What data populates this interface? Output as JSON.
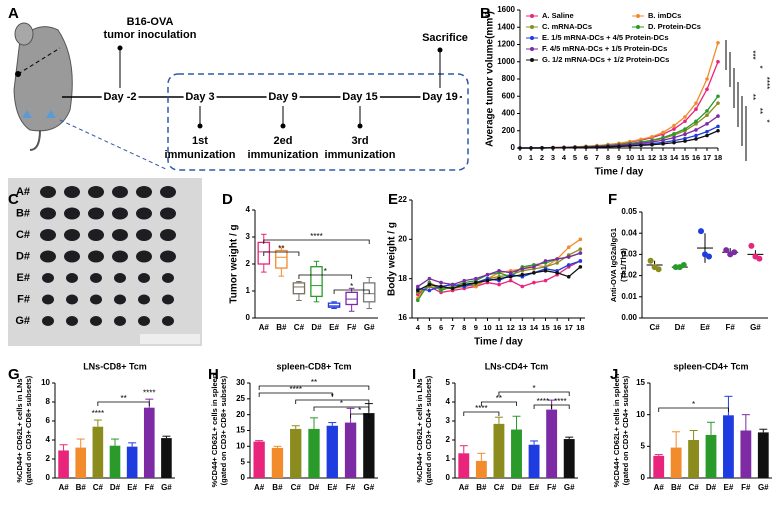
{
  "diagram": {
    "panel": "A",
    "inoculation": [
      "B16-OVA",
      "tumor inoculation"
    ],
    "days": [
      "Day -2",
      "Day 3",
      "Day 9",
      "Day 15",
      "Day 19"
    ],
    "sacrifice": "Sacrifice",
    "immunizations": [
      [
        "1st",
        "immunization"
      ],
      [
        "2ed",
        "immunization"
      ],
      [
        "3rd",
        "immunization"
      ]
    ]
  },
  "photo": {
    "panel": "C",
    "rows": [
      "A#",
      "B#",
      "C#",
      "D#",
      "E#",
      "F#",
      "G#"
    ]
  },
  "chart_data": [
    {
      "type": "line",
      "panel": "B",
      "xlabel": "Time / day",
      "ylabel": "Average tumor volume(mm³)",
      "x": [
        0,
        1,
        2,
        3,
        4,
        5,
        6,
        7,
        8,
        9,
        10,
        11,
        12,
        13,
        14,
        15,
        16,
        17,
        18
      ],
      "xlim": [
        0,
        18
      ],
      "xticks": [
        0,
        1,
        2,
        3,
        4,
        5,
        6,
        7,
        8,
        9,
        10,
        11,
        12,
        13,
        14,
        15,
        16,
        17,
        18
      ],
      "ylim": [
        0,
        1600
      ],
      "yticks": [
        0,
        200,
        400,
        600,
        800,
        1000,
        1200,
        1400,
        1600
      ],
      "series": [
        {
          "name": "A. Saline",
          "color": "#e8257b",
          "values": [
            0,
            0,
            2,
            5,
            8,
            12,
            18,
            25,
            35,
            50,
            70,
            90,
            120,
            160,
            220,
            310,
            450,
            680,
            1000
          ]
        },
        {
          "name": "B. imDCs",
          "color": "#f28b2c",
          "values": [
            0,
            0,
            2,
            5,
            9,
            14,
            20,
            28,
            40,
            55,
            75,
            100,
            130,
            180,
            260,
            360,
            520,
            800,
            1220
          ]
        },
        {
          "name": "C. mRNA-DCs",
          "color": "#8c8c1e",
          "values": [
            0,
            0,
            1,
            3,
            6,
            10,
            14,
            20,
            28,
            38,
            50,
            65,
            85,
            110,
            150,
            200,
            280,
            380,
            520
          ]
        },
        {
          "name": "D. Protein-DCs",
          "color": "#2a9a2a",
          "values": [
            0,
            0,
            1,
            3,
            6,
            10,
            15,
            21,
            30,
            40,
            53,
            70,
            90,
            120,
            165,
            220,
            310,
            430,
            600
          ]
        },
        {
          "name": "E. 1/5 mRNA-DCs + 4/5 Protein-DCs",
          "color": "#1e3ce0",
          "values": [
            0,
            0,
            1,
            2,
            4,
            6,
            9,
            13,
            18,
            24,
            31,
            40,
            50,
            65,
            85,
            110,
            145,
            190,
            250
          ]
        },
        {
          "name": "F. 4/5 mRNA-DCs + 1/5 Protein-DCs",
          "color": "#7d2aa5",
          "values": [
            0,
            0,
            1,
            3,
            5,
            8,
            12,
            17,
            24,
            32,
            42,
            55,
            70,
            90,
            120,
            160,
            210,
            280,
            370
          ]
        },
        {
          "name": "G. 1/2 mRNA-DCs + 1/2 Protein-DCs",
          "color": "#111111",
          "values": [
            0,
            0,
            1,
            2,
            3,
            5,
            7,
            10,
            14,
            18,
            24,
            30,
            38,
            48,
            62,
            80,
            105,
            145,
            200
          ]
        }
      ],
      "annotations": [
        "***",
        "*",
        "****",
        "**",
        "**",
        "*"
      ]
    },
    {
      "type": "box",
      "panel": "D",
      "ylabel": "Tumor weight / g",
      "categories": [
        "A#",
        "B#",
        "C#",
        "D#",
        "E#",
        "F#",
        "G#"
      ],
      "ylim": [
        0,
        4
      ],
      "yticks": [
        0,
        1,
        2,
        3,
        4
      ],
      "colors": [
        "#e8257b",
        "#f28b2c",
        "#7a6e62",
        "#2a9a2a",
        "#1e3ce0",
        "#7d2aa5",
        "#777777"
      ],
      "boxes": [
        {
          "min": 1.7,
          "q1": 2.0,
          "median": 2.45,
          "q3": 2.8,
          "max": 3.1
        },
        {
          "min": 1.55,
          "q1": 1.85,
          "median": 2.25,
          "q3": 2.5,
          "max": 2.6
        },
        {
          "min": 0.65,
          "q1": 0.9,
          "median": 1.15,
          "q3": 1.3,
          "max": 1.35
        },
        {
          "min": 0.6,
          "q1": 0.8,
          "median": 1.2,
          "q3": 1.9,
          "max": 2.1
        },
        {
          "min": 0.35,
          "q1": 0.4,
          "median": 0.45,
          "q3": 0.55,
          "max": 0.6
        },
        {
          "min": 0.25,
          "q1": 0.5,
          "median": 0.7,
          "q3": 0.95,
          "max": 1.1
        },
        {
          "min": 0.35,
          "q1": 0.6,
          "median": 0.9,
          "q3": 1.3,
          "max": 1.5
        }
      ],
      "annotations": [
        "****",
        "**",
        "*",
        "*"
      ]
    },
    {
      "type": "line",
      "panel": "E",
      "xlabel": "Time / day",
      "ylabel": "Body weight / g",
      "x": [
        4,
        5,
        6,
        7,
        8,
        9,
        10,
        11,
        12,
        13,
        14,
        15,
        16,
        17,
        18
      ],
      "xlim": [
        3.5,
        18.4
      ],
      "xticks": [
        4,
        5,
        6,
        7,
        8,
        9,
        10,
        11,
        12,
        13,
        14,
        15,
        16,
        17,
        18
      ],
      "ylim": [
        16,
        22
      ],
      "yticks": [
        16,
        18,
        20,
        22
      ],
      "series": [
        {
          "color": "#e8257b",
          "values": [
            17.2,
            17.6,
            17.3,
            17.4,
            17.5,
            17.6,
            17.8,
            17.7,
            17.9,
            17.6,
            17.8,
            17.9,
            18.2,
            18.6,
            18.9
          ]
        },
        {
          "color": "#f28b2c",
          "values": [
            17.0,
            17.8,
            17.5,
            17.6,
            17.7,
            17.6,
            18.0,
            18.3,
            18.4,
            18.5,
            18.7,
            18.6,
            19.0,
            19.6,
            20.0
          ]
        },
        {
          "color": "#8c8c1e",
          "values": [
            17.3,
            17.6,
            17.5,
            17.5,
            17.6,
            17.7,
            18.0,
            18.1,
            18.2,
            18.4,
            18.5,
            18.6,
            18.8,
            19.2,
            19.5
          ]
        },
        {
          "color": "#2a9a2a",
          "values": [
            16.9,
            17.8,
            17.4,
            17.6,
            17.8,
            17.9,
            18.2,
            18.3,
            18.1,
            18.6,
            18.7,
            18.8,
            19.0,
            19.1,
            19.3
          ]
        },
        {
          "color": "#1e3ce0",
          "values": [
            17.5,
            17.4,
            17.6,
            17.7,
            17.6,
            17.8,
            18.0,
            17.9,
            18.2,
            18.1,
            18.3,
            18.5,
            18.4,
            18.7,
            18.9
          ]
        },
        {
          "color": "#7d2aa5",
          "values": [
            17.6,
            18.0,
            17.8,
            17.7,
            17.9,
            18.0,
            18.2,
            18.4,
            18.3,
            18.5,
            18.6,
            18.9,
            19.0,
            19.1,
            19.3
          ]
        },
        {
          "color": "#111111",
          "values": [
            17.4,
            17.7,
            17.6,
            17.5,
            17.7,
            17.8,
            17.9,
            18.0,
            18.1,
            18.2,
            18.3,
            18.4,
            18.3,
            18.1,
            18.6
          ]
        }
      ]
    },
    {
      "type": "dot",
      "panel": "F",
      "ylabel": [
        "Anti-OVA IgG2a/IgG1",
        "(Th1/Th2)"
      ],
      "categories": [
        "C#",
        "D#",
        "E#",
        "F#",
        "G#"
      ],
      "colors": [
        "#8c8c1e",
        "#2a9a2a",
        "#1e3ce0",
        "#7d2aa5",
        "#e8257b"
      ],
      "ylim": [
        0,
        0.05
      ],
      "yticks": [
        {
          "value": 0,
          "label": "0.00"
        },
        {
          "value": 0.01,
          "label": "0.01"
        },
        {
          "value": 0.02,
          "label": "0.02"
        },
        {
          "value": 0.03,
          "label": "0.03"
        },
        {
          "value": 0.04,
          "label": "0.04"
        },
        {
          "value": 0.05,
          "label": "0.05"
        }
      ],
      "means": [
        0.025,
        0.024,
        0.033,
        0.031,
        0.03
      ],
      "errors": [
        0.002,
        0.001,
        0.007,
        0.002,
        0.002
      ],
      "points": [
        [
          0.027,
          0.024,
          0.023
        ],
        [
          0.024,
          0.024,
          0.025
        ],
        [
          0.041,
          0.03,
          0.029
        ],
        [
          0.032,
          0.03,
          0.031
        ],
        [
          0.034,
          0.029,
          0.028
        ]
      ]
    },
    {
      "type": "bar",
      "panel": "G",
      "title": "LNs-CD8+ Tcm",
      "ylabel": [
        "%CD44+ CD62L+ cells in LNs",
        "(gated on CD3+ CD8+ subsets)"
      ],
      "categories": [
        "A#",
        "B#",
        "C#",
        "D#",
        "E#",
        "F#",
        "G#"
      ],
      "colors": [
        "#e8257b",
        "#f28b2c",
        "#8c8c1e",
        "#2a9a2a",
        "#1e3ce0",
        "#7d2aa5",
        "#111111"
      ],
      "ylim": [
        0,
        10
      ],
      "yticks": [
        0,
        2,
        4,
        6,
        8,
        10
      ],
      "values": [
        2.9,
        3.2,
        5.4,
        3.4,
        3.3,
        7.4,
        4.2
      ],
      "errors": [
        0.6,
        0.9,
        0.7,
        0.7,
        0.4,
        0.9,
        0.2
      ],
      "annotations": [
        "****",
        "****",
        "**"
      ]
    },
    {
      "type": "bar",
      "panel": "H",
      "title": "spleen-CD8+ Tcm",
      "ylabel": [
        "%CD44+ CD62L+ cells in spleen",
        "(gated on CD3+ CD8+ subsets)"
      ],
      "categories": [
        "A#",
        "B#",
        "C#",
        "D#",
        "E#",
        "F#",
        "G#"
      ],
      "colors": [
        "#e8257b",
        "#f28b2c",
        "#8c8c1e",
        "#2a9a2a",
        "#1e3ce0",
        "#7d2aa5",
        "#111111"
      ],
      "ylim": [
        0,
        30
      ],
      "yticks": [
        0,
        5,
        10,
        15,
        20,
        25,
        30
      ],
      "values": [
        11.5,
        9.5,
        15.5,
        15.5,
        16.5,
        17.5,
        20.5
      ],
      "errors": [
        0.3,
        0.5,
        1,
        3.5,
        1,
        4.5,
        3
      ],
      "annotations": [
        "**",
        "****",
        "*",
        "*",
        "*"
      ]
    },
    {
      "type": "bar",
      "panel": "I",
      "title": "LNs-CD4+ Tcm",
      "ylabel": [
        "%CD44+ CD62L+ cells in LNs",
        "(gated on CD3+ CD4+ subsets)"
      ],
      "categories": [
        "A#",
        "B#",
        "C#",
        "D#",
        "E#",
        "F#",
        "G#"
      ],
      "colors": [
        "#e8257b",
        "#f28b2c",
        "#8c8c1e",
        "#2a9a2a",
        "#1e3ce0",
        "#7d2aa5",
        "#111111"
      ],
      "ylim": [
        0,
        5
      ],
      "yticks": [
        0,
        1,
        2,
        3,
        4,
        5
      ],
      "values": [
        1.3,
        0.9,
        2.85,
        2.55,
        1.75,
        3.6,
        2.05
      ],
      "errors": [
        0.4,
        0.4,
        0.35,
        0.7,
        0.2,
        0.5,
        0.1
      ],
      "annotations": [
        "*",
        "**",
        "****",
        "****",
        "****"
      ]
    },
    {
      "type": "bar",
      "panel": "J",
      "title": "spleen-CD4+ Tcm",
      "ylabel": [
        "%CD44+ CD62L+ cells in spleen",
        "(gated on CD3+ CD4+ subsets)"
      ],
      "categories": [
        "A#",
        "B#",
        "C#",
        "D#",
        "E#",
        "F#",
        "G#"
      ],
      "colors": [
        "#e8257b",
        "#f28b2c",
        "#8c8c1e",
        "#2a9a2a",
        "#1e3ce0",
        "#7d2aa5",
        "#111111"
      ],
      "ylim": [
        0,
        15
      ],
      "yticks": [
        0,
        5,
        10,
        15
      ],
      "values": [
        3.5,
        4.8,
        6,
        6.8,
        9.9,
        7.5,
        7.2
      ],
      "errors": [
        0.2,
        2.5,
        1.5,
        2,
        3,
        2.5,
        0.5
      ],
      "annotations": [
        "*"
      ]
    }
  ]
}
